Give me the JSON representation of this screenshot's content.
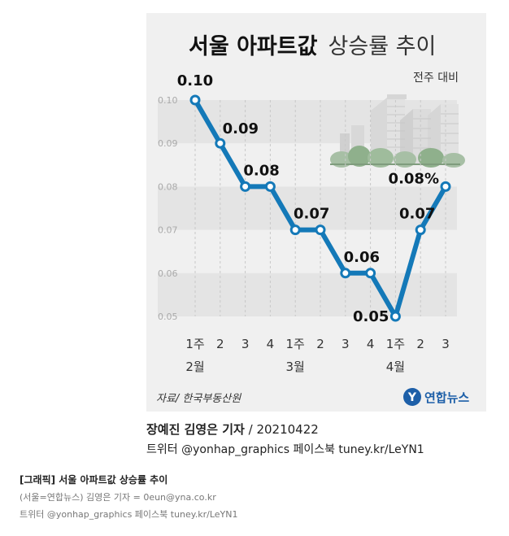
{
  "chart_data": {
    "type": "line",
    "title_bold": "서울 아파트값",
    "title_light": "상승률 추이",
    "subtitle": "전주 대비",
    "categories": [
      "1주",
      "2",
      "3",
      "4",
      "1주",
      "2",
      "3",
      "4",
      "1주",
      "2",
      "3"
    ],
    "month_labels": [
      {
        "label": "2월",
        "index": 0
      },
      {
        "label": "3월",
        "index": 4
      },
      {
        "label": "4월",
        "index": 8
      }
    ],
    "values": [
      0.1,
      0.09,
      0.08,
      0.08,
      0.07,
      0.07,
      0.06,
      0.06,
      0.05,
      0.07,
      0.08
    ],
    "point_labels": [
      "0.10",
      "0.09",
      "0.08",
      "",
      "0.07",
      "",
      "0.06",
      "",
      "0.05",
      "0.07",
      "0.08%"
    ],
    "yticks": [
      "0.10",
      "0.09",
      "0.08",
      "0.07",
      "0.06",
      "0.05"
    ],
    "ylim": [
      0.05,
      0.1
    ],
    "grid": "alternating horizontal bands",
    "source": "자료/ 한국부동산원",
    "colors": {
      "line": "#1479b8",
      "background": "#f0f0f0",
      "band": "#e4e4e4"
    }
  },
  "brand": {
    "name": "연합뉴스",
    "logo_letter": "Y",
    "logo_color": "#1d5fa8"
  },
  "credit": {
    "name": "장예진 김영은 기자",
    "date": " / 20210422",
    "sns": "트위터 @yonhap_graphics  페이스북 tuney.kr/LeYN1"
  },
  "caption": {
    "title": "[그래픽] 서울 아파트값 상승률 추이",
    "line1": "(서울=연합뉴스) 김영은 기자 = 0eun@yna.co.kr",
    "line2": "트위터 @yonhap_graphics 페이스북 tuney.kr/LeYN1"
  }
}
